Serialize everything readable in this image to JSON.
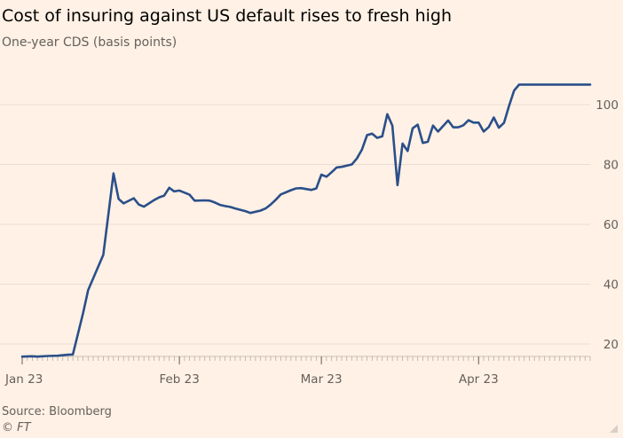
{
  "chart_data": {
    "type": "line",
    "title": "Cost of insuring against US default rises to fresh high",
    "subtitle": "One-year CDS (basis points)",
    "xlabel": "",
    "ylabel": "One-year CDS (basis points)",
    "ylim": [
      15,
      109
    ],
    "grid": true,
    "y_ticks": [
      20,
      40,
      60,
      80,
      100
    ],
    "y_tick_labels": [
      "20",
      "40",
      "60",
      "80",
      "100"
    ],
    "x_tick_labels": [
      {
        "label": "Jan 23",
        "day": 0
      },
      {
        "label": "Feb 23",
        "day": 31
      },
      {
        "label": "Mar 23",
        "day": 59
      },
      {
        "label": "Apr 23",
        "day": 90
      }
    ],
    "x_day_range": [
      0,
      112
    ],
    "minor_tick_days": [
      0,
      1,
      2,
      3,
      4,
      5,
      6,
      7,
      8,
      9,
      10,
      11,
      12,
      13,
      14,
      15,
      16,
      17,
      18,
      19,
      20,
      21,
      22,
      23,
      24,
      25,
      26,
      27,
      28,
      29,
      30,
      31,
      32,
      33,
      34,
      35,
      36,
      37,
      38,
      39,
      40,
      41,
      42,
      43,
      44,
      45,
      46,
      47,
      48,
      49,
      50,
      51,
      52,
      53,
      54,
      55,
      56,
      57,
      58,
      59,
      60,
      61,
      62,
      63,
      64,
      65,
      66,
      67,
      68,
      69,
      70,
      71,
      72,
      73,
      74,
      75,
      76,
      77,
      78,
      79,
      80,
      81,
      82,
      83,
      84,
      85,
      86,
      87,
      88,
      89,
      90,
      91,
      92,
      93,
      94,
      95,
      96,
      97,
      98,
      99,
      100,
      101,
      102,
      103,
      104,
      105,
      106,
      107,
      108,
      109,
      110,
      111,
      112
    ],
    "series": [
      {
        "name": "US one-year CDS",
        "color": "#2a4f8a",
        "x": [
          0,
          2,
          3,
          5,
          7,
          9,
          10,
          12,
          13,
          16,
          18,
          19,
          20,
          22,
          23,
          24,
          26,
          27,
          28,
          29,
          30,
          31,
          33,
          34,
          36,
          37,
          38,
          39,
          40,
          41,
          42,
          44,
          45,
          47,
          48,
          49,
          50,
          51,
          53,
          54,
          55,
          57,
          58,
          59,
          60,
          61,
          62,
          63,
          65,
          66,
          67,
          68,
          69,
          70,
          71,
          72,
          73,
          74,
          75,
          76,
          77,
          78,
          79,
          80,
          81,
          82,
          84,
          85,
          86,
          87,
          88,
          89,
          90,
          91,
          92,
          93,
          94,
          95,
          96,
          97,
          98,
          99,
          100,
          101,
          102,
          103,
          104,
          105,
          106,
          107,
          108,
          109,
          110,
          111,
          112
        ],
        "values": [
          15.8,
          15.9,
          15.8,
          16.0,
          16.1,
          16.4,
          16.5,
          30.3,
          38.0,
          49.8,
          77.0,
          68.5,
          67.0,
          68.7,
          66.6,
          65.9,
          68.1,
          69.0,
          69.6,
          72.2,
          71.0,
          71.3,
          69.9,
          67.9,
          68.0,
          67.9,
          67.3,
          66.5,
          66.1,
          65.8,
          65.3,
          64.4,
          63.8,
          64.6,
          65.3,
          66.6,
          68.2,
          70.0,
          71.4,
          72.0,
          72.1,
          71.5,
          72.0,
          76.6,
          75.9,
          77.4,
          79.0,
          79.2,
          80.0,
          82.0,
          85.0,
          89.8,
          90.3,
          88.9,
          89.4,
          96.8,
          93.0,
          73.1,
          87.0,
          84.5,
          92.1,
          93.3,
          87.2,
          87.6,
          93.0,
          91.0,
          94.7,
          92.4,
          92.4,
          93.1,
          94.8,
          94.0,
          94.0,
          91.0,
          92.5,
          95.7,
          92.3,
          93.9,
          99.6,
          104.7,
          106.7,
          106.7,
          106.7,
          106.7,
          106.7,
          106.7,
          106.7,
          106.7,
          106.7,
          106.7,
          106.7,
          106.7,
          106.7,
          106.7,
          106.7
        ]
      }
    ]
  },
  "footer": {
    "source": "Source: Bloomberg",
    "copyright": "© FT"
  }
}
